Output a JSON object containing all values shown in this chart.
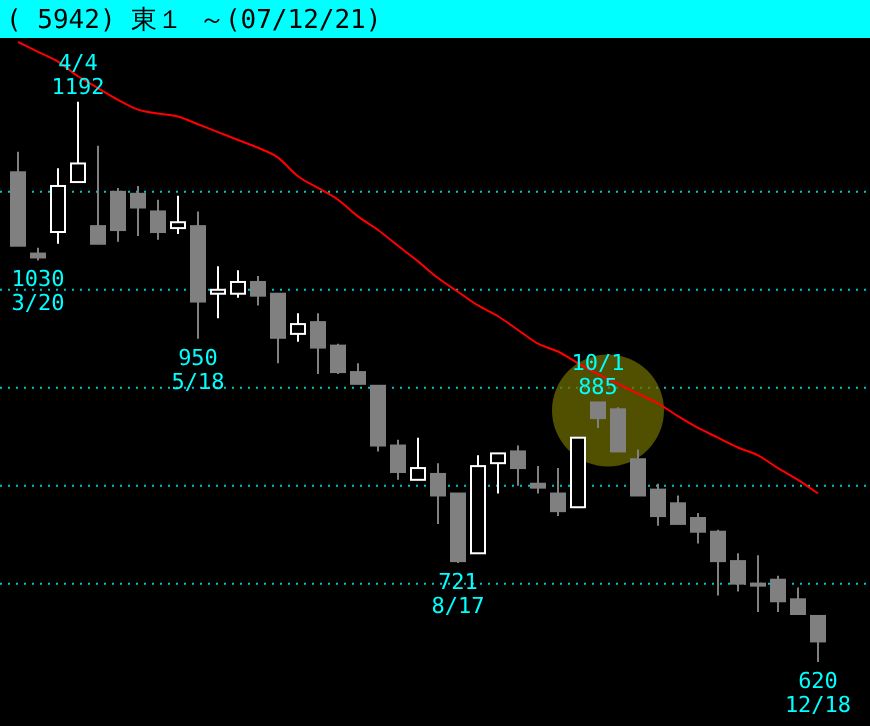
{
  "chart_data": {
    "type": "candlestick",
    "title": "( 5942) 東１ ～(07/12/21)",
    "categories": [
      null,
      "3/20",
      null,
      "4/4",
      null,
      null,
      null,
      null,
      null,
      "5/18",
      null,
      null,
      null,
      null,
      null,
      null,
      null,
      null,
      null,
      null,
      null,
      null,
      "8/17",
      null,
      null,
      null,
      null,
      null,
      null,
      "10/1",
      null,
      null,
      null,
      null,
      null,
      null,
      null,
      null,
      null,
      null,
      "12/18"
    ],
    "ohlc": [
      [
        1120,
        1141,
        1045,
        1045
      ],
      [
        1037,
        1043,
        1030,
        1033
      ],
      [
        1059,
        1124,
        1047,
        1106
      ],
      [
        1110,
        1192,
        1110,
        1129
      ],
      [
        1065,
        1147,
        1047,
        1047
      ],
      [
        1100,
        1104,
        1049,
        1061
      ],
      [
        1098,
        1106,
        1055,
        1084
      ],
      [
        1080,
        1092,
        1051,
        1059
      ],
      [
        1063,
        1096,
        1057,
        1069
      ],
      [
        1065,
        1080,
        950,
        988
      ],
      [
        996,
        1024,
        971,
        1000
      ],
      [
        996,
        1020,
        992,
        1008
      ],
      [
        1008,
        1014,
        984,
        994
      ],
      [
        996,
        996,
        925,
        951
      ],
      [
        955,
        976,
        947,
        965
      ],
      [
        967,
        976,
        914,
        941
      ],
      [
        943,
        945,
        914,
        916
      ],
      [
        916,
        925,
        904,
        904
      ],
      [
        902,
        902,
        835,
        841
      ],
      [
        841,
        847,
        806,
        814
      ],
      [
        806,
        849,
        806,
        818
      ],
      [
        812,
        823,
        761,
        790
      ],
      [
        792,
        792,
        721,
        723
      ],
      [
        731,
        831,
        731,
        820
      ],
      [
        823,
        833,
        792,
        833
      ],
      [
        835,
        841,
        800,
        818
      ],
      [
        802,
        820,
        792,
        798
      ],
      [
        792,
        818,
        769,
        774
      ],
      [
        778,
        849,
        778,
        849
      ],
      [
        885,
        885,
        859,
        869
      ],
      [
        878,
        880,
        835,
        835
      ],
      [
        827,
        837,
        790,
        790
      ],
      [
        796,
        802,
        759,
        769
      ],
      [
        782,
        790,
        761,
        761
      ],
      [
        767,
        772,
        741,
        753
      ],
      [
        753,
        755,
        688,
        723
      ],
      [
        723,
        731,
        692,
        700
      ],
      [
        700,
        729,
        671,
        700
      ],
      [
        704,
        708,
        671,
        682
      ],
      [
        684,
        696,
        669,
        669
      ],
      [
        667,
        667,
        620,
        641
      ]
    ],
    "colors": [
      "#808080",
      "#808080",
      "#ffffff",
      "#ffffff",
      "#808080",
      "#808080",
      "#808080",
      "#808080",
      "#ffffff",
      "#808080",
      "#ffffff",
      "#ffffff",
      "#808080",
      "#808080",
      "#ffffff",
      "#808080",
      "#808080",
      "#808080",
      "#808080",
      "#808080",
      "#ffffff",
      "#808080",
      "#808080",
      "#ffffff",
      "#ffffff",
      "#808080",
      "#808080",
      "#808080",
      "#ffffff",
      "#808080",
      "#808080",
      "#808080",
      "#808080",
      "#808080",
      "#808080",
      "#808080",
      "#808080",
      "#808080",
      "#808080",
      "#808080",
      "#808080"
    ],
    "series": [
      {
        "type": "line",
        "color": "#ff0000",
        "values": [
          1253,
          1243,
          1233,
          1218,
          1206,
          1194,
          1184,
          1180,
          1177,
          1169,
          1161,
          1153,
          1145,
          1135,
          1116,
          1104,
          1092,
          1075,
          1061,
          1045,
          1029,
          1012,
          998,
          984,
          973,
          959,
          945,
          937,
          925,
          914,
          904,
          894,
          884,
          871,
          859,
          849,
          839,
          831,
          818,
          806,
          792
        ]
      }
    ],
    "annotations": [
      {
        "text": "1030",
        "x": "3/20",
        "y": 1030
      },
      {
        "text": "1192",
        "x": "4/4",
        "y": 1192
      },
      {
        "text": "950",
        "x": "5/18",
        "y": 950
      },
      {
        "text": "721",
        "x": "8/17",
        "y": 721
      },
      {
        "text": "885",
        "x": "10/1",
        "y": 885
      },
      {
        "text": "620",
        "x": "12/18",
        "y": 620
      }
    ],
    "yticks": [
      {
        "value": 700,
        "label": null
      },
      {
        "value": 800,
        "label": null
      },
      {
        "value": 900,
        "label": null
      },
      {
        "value": 1000,
        "label": null
      },
      {
        "value": 1100,
        "label": null
      }
    ],
    "grid": "y"
  }
}
